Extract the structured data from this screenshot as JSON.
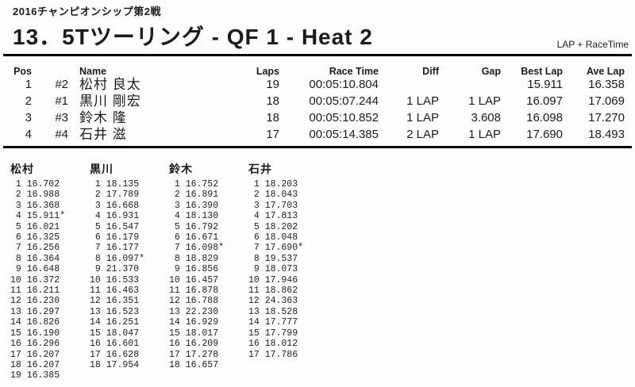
{
  "header": {
    "event": "2016チャンピオンシップ第2戦",
    "title": "13．5Tツーリング - QF 1 - Heat 2",
    "timing_label": "LAP + RaceTime"
  },
  "results": {
    "columns": {
      "pos": "Pos",
      "name": "Name",
      "laps": "Laps",
      "race_time": "Race Time",
      "diff": "Diff",
      "gap": "Gap",
      "best_lap": "Best Lap",
      "ave_lap": "Ave Lap"
    },
    "rows": [
      {
        "pos": "1",
        "car": "#2",
        "name": "松村 良太",
        "laps": "19",
        "race_time": "00:05:10.804",
        "diff": "",
        "gap": "",
        "best_lap": "15.911",
        "ave_lap": "16.358"
      },
      {
        "pos": "2",
        "car": "#1",
        "name": "黒川 剛宏",
        "laps": "18",
        "race_time": "00:05:07.244",
        "diff": "1 LAP",
        "gap": "1 LAP",
        "best_lap": "16.097",
        "ave_lap": "17.069"
      },
      {
        "pos": "3",
        "car": "#3",
        "name": "鈴木 隆",
        "laps": "18",
        "race_time": "00:05:10.852",
        "diff": "1 LAP",
        "gap": "3.608",
        "best_lap": "16.098",
        "ave_lap": "17.270"
      },
      {
        "pos": "4",
        "car": "#4",
        "name": "石井 滋",
        "laps": "17",
        "race_time": "00:05:14.385",
        "diff": "2 LAP",
        "gap": "1 LAP",
        "best_lap": "17.690",
        "ave_lap": "18.493"
      }
    ]
  },
  "lap_times": {
    "drivers": [
      {
        "name": "松村",
        "laps": [
          "16.702",
          "16.988",
          "16.368",
          "15.911*",
          "16.021",
          "16.325",
          "16.256",
          "16.364",
          "16.648",
          "16.372",
          "16.211",
          "16.230",
          "16.297",
          "16.826",
          "16.190",
          "16.296",
          "16.207",
          "16.207",
          "16.385"
        ]
      },
      {
        "name": "黒川",
        "laps": [
          "18.135",
          "17.789",
          "16.668",
          "16.931",
          "16.547",
          "16.179",
          "16.177",
          "16.097*",
          "21.370",
          "16.533",
          "16.463",
          "16.351",
          "16.523",
          "16.251",
          "18.047",
          "16.601",
          "16.628",
          "17.954"
        ]
      },
      {
        "name": "鈴木",
        "laps": [
          "16.752",
          "16.891",
          "16.390",
          "18.130",
          "16.792",
          "16.671",
          "16.098*",
          "18.829",
          "16.856",
          "16.457",
          "16.878",
          "16.788",
          "22.230",
          "16.929",
          "18.017",
          "16.209",
          "17.278",
          "16.657"
        ]
      },
      {
        "name": "石井",
        "laps": [
          "18.203",
          "18.043",
          "17.703",
          "17.813",
          "18.202",
          "18.048",
          "17.690*",
          "19.537",
          "18.073",
          "17.946",
          "18.862",
          "24.363",
          "18.528",
          "17.777",
          "17.799",
          "18.012",
          "17.786"
        ]
      }
    ]
  }
}
